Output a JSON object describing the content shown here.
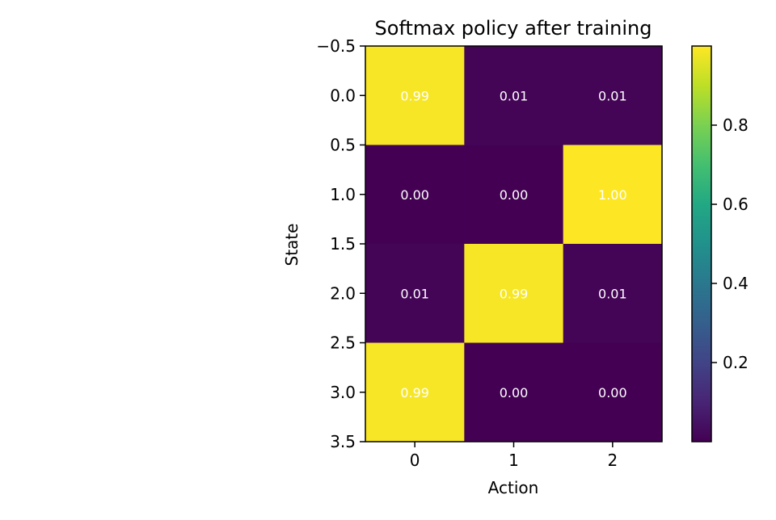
{
  "chart_data": {
    "type": "heatmap",
    "title": "Softmax policy after training",
    "xlabel": "Action",
    "ylabel": "State",
    "x_categories": [
      0,
      1,
      2
    ],
    "y_categories": [
      0,
      1,
      2,
      3
    ],
    "x_ticks": [
      "0",
      "1",
      "2"
    ],
    "y_ticks": [
      "−0.5",
      "0.0",
      "0.5",
      "1.0",
      "1.5",
      "2.0",
      "2.5",
      "3.0",
      "3.5"
    ],
    "values": [
      [
        0.99,
        0.01,
        0.01
      ],
      [
        0.0,
        0.0,
        1.0
      ],
      [
        0.01,
        0.99,
        0.01
      ],
      [
        0.99,
        0.0,
        0.0
      ]
    ],
    "cell_labels": [
      [
        "0.99",
        "0.01",
        "0.01"
      ],
      [
        "0.00",
        "0.00",
        "1.00"
      ],
      [
        "0.01",
        "0.99",
        "0.01"
      ],
      [
        "0.99",
        "0.00",
        "0.00"
      ]
    ],
    "ylim": [
      -0.5,
      3.5
    ],
    "colormap": "viridis",
    "colorbar": {
      "range": [
        0.0,
        1.0
      ],
      "ticks": [
        0.2,
        0.4,
        0.6,
        0.8
      ],
      "tick_labels": [
        "0.2",
        "0.4",
        "0.6",
        "0.8"
      ]
    },
    "annotation_color": "#ffffff",
    "grid": false
  }
}
